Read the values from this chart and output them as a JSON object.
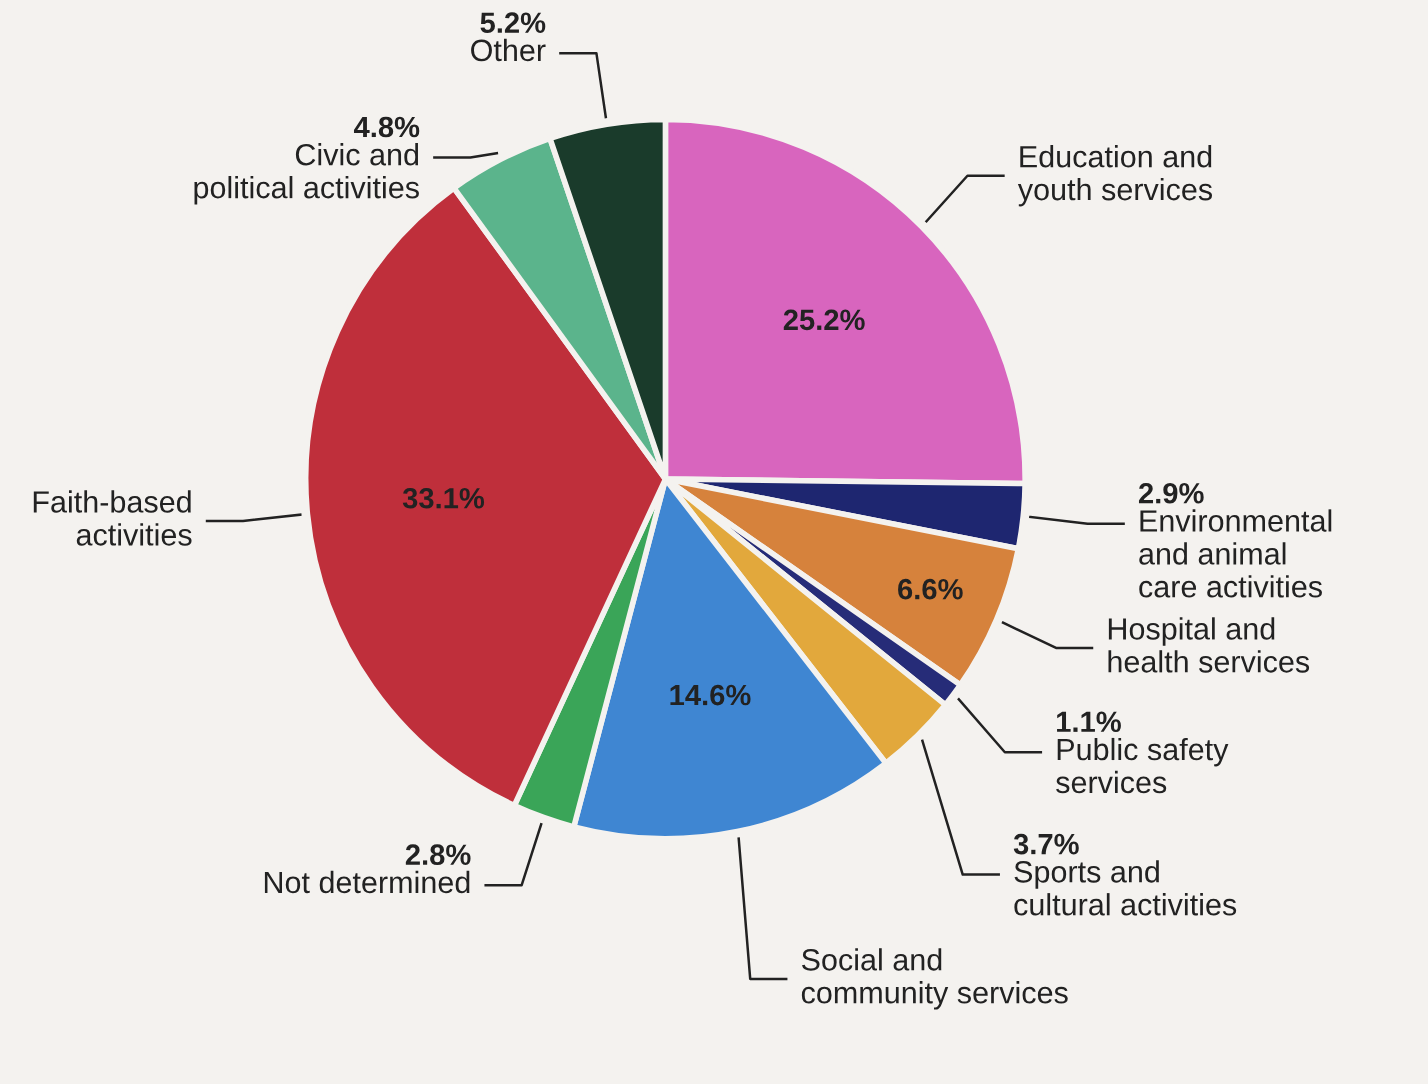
{
  "chart_data": {
    "type": "pie",
    "categories": [
      "Education and\nyouth services",
      "Environmental\nand animal\ncare activities",
      "Hospital and\nhealth services",
      "Public safety\nservices",
      "Sports and\ncultural activities",
      "Social and\ncommunity services",
      "Not determined",
      "Faith-based\nactivities",
      "Civic and\npolitical activities",
      "Other"
    ],
    "values": [
      25.2,
      2.9,
      6.6,
      1.1,
      3.7,
      14.6,
      2.8,
      33.1,
      4.8,
      5.2
    ],
    "value_labels": [
      "25.2%",
      "2.9%",
      "6.6%",
      "1.1%",
      "3.7%",
      "14.6%",
      "2.8%",
      "33.1%",
      "4.8%",
      "5.2%"
    ],
    "colors": [
      "#d865be",
      "#1e2670",
      "#d6823c",
      "#262c78",
      "#e2a83c",
      "#3f86d2",
      "#3aa558",
      "#bf2f3b",
      "#5bb48c",
      "#1a3b2b"
    ],
    "legend": false
  }
}
